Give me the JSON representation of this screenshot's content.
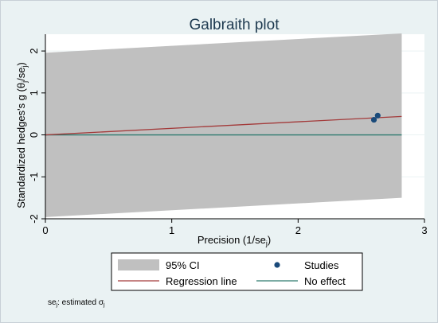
{
  "chart_data": {
    "type": "scatter",
    "title": "Galbraith plot",
    "xlabel_main": "Precision (1/se",
    "xlabel_sub": "j",
    "xlabel_end": ")",
    "ylabel_main": "Standardized hedges's g (θ",
    "ylabel_sub1": "j",
    "ylabel_mid": "/se",
    "ylabel_sub2": "j",
    "ylabel_end": ")",
    "xlim": [
      0,
      3
    ],
    "ylim": [
      -2,
      2.4
    ],
    "xticks": [
      0,
      1,
      2,
      3
    ],
    "yticks": [
      -2,
      -1,
      0,
      1,
      2
    ],
    "grid": "horizontal",
    "ci_band": {
      "x": [
        0,
        2.82
      ],
      "lower": [
        -1.96,
        -1.5
      ],
      "upper": [
        1.96,
        2.42
      ]
    },
    "regression_line": {
      "x": [
        0,
        2.82
      ],
      "y": [
        0,
        0.44
      ]
    },
    "no_effect_y": 0,
    "studies": [
      {
        "x": 2.6,
        "y": 0.36
      },
      {
        "x": 2.63,
        "y": 0.46
      }
    ],
    "legend": {
      "placement": "bottom",
      "items": [
        {
          "label": "95% CI",
          "kind": "band"
        },
        {
          "label": "Studies",
          "kind": "marker"
        },
        {
          "label": "Regression line",
          "kind": "line-red"
        },
        {
          "label": "No effect",
          "kind": "line-teal"
        }
      ]
    },
    "note_main": "se",
    "note_sub": "j",
    "note_mid": ": estimated σ",
    "note_sub2": "j",
    "colors": {
      "band": "#c0c0c0",
      "regression": "#a33a3a",
      "no_effect": "#2d7a6e",
      "studies": "#1a4a7a",
      "plot_bg": "#ffffff",
      "outer_bg": "#eaf2f3",
      "grid": "#eaf2f3"
    }
  }
}
